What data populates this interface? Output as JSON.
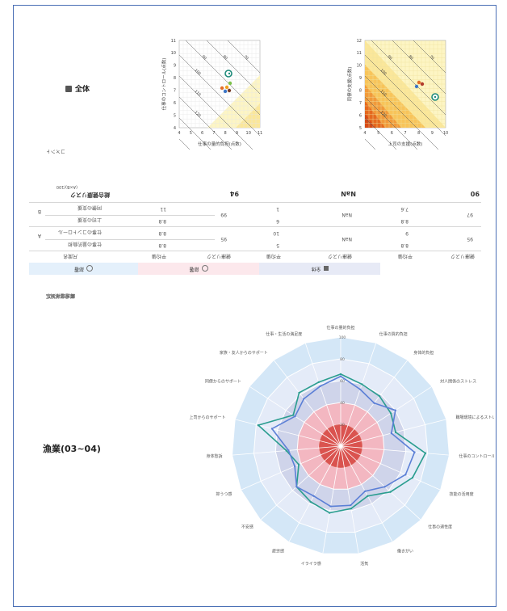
{
  "section_all": {
    "icon": "building-icon",
    "title": "全体"
  },
  "plot1": {
    "xlabel": "仕事の量的負担(点数)",
    "ylabel": "仕事のコントロール(点数)",
    "xticks": [
      "4",
      "5",
      "6",
      "7",
      "8",
      "9",
      "10",
      "11"
    ],
    "yticks": [
      "4",
      "5",
      "6",
      "7",
      "8",
      "9",
      "10",
      "11"
    ],
    "contours": [
      "70",
      "80",
      "90",
      "100",
      "110",
      "120",
      "130",
      "140",
      "150"
    ]
  },
  "plot2": {
    "xlabel": "上司の支援(点数)",
    "ylabel": "同僚の支援(点数)",
    "xticks": [
      "4",
      "5",
      "6",
      "7",
      "8",
      "9",
      "10"
    ],
    "yticks": [
      "5",
      "6",
      "7",
      "8",
      "9",
      "10",
      "11",
      "12"
    ],
    "contours": [
      "70",
      "80",
      "90",
      "100",
      "110",
      "120",
      "130",
      "140"
    ]
  },
  "comment_label": "コメント",
  "table": {
    "tabs": [
      {
        "label": "全体",
        "icon": "building-icon",
        "color": "#e7eaf6"
      },
      {
        "label": "部署",
        "icon": "smile-icon",
        "color": "#fce8ec"
      },
      {
        "label": "部署",
        "icon": "smile-icon",
        "color": "#e4f0fb"
      }
    ],
    "header": [
      "尺度名",
      "平均値",
      "健康リスク",
      "平均値",
      "健康リスク",
      "平均値",
      "健康リスク"
    ],
    "group_a": {
      "label": "A",
      "rows": [
        {
          "name": "仕事の量的負担",
          "v1": "8.8",
          "v2": "5",
          "v3": "8.8"
        },
        {
          "name": "仕事のコントロール",
          "v1": "8.8",
          "v2": "10",
          "v3": "9"
        }
      ],
      "risks": [
        "95",
        "NaN",
        "95"
      ]
    },
    "group_b": {
      "label": "B",
      "rows": [
        {
          "name": "上司の支援",
          "v1": "8.8",
          "v2": "6",
          "v3": "8.8"
        },
        {
          "name": "同僚の支援",
          "v1": "11",
          "v2": "1",
          "v3": "7.6"
        }
      ],
      "risks": [
        "99",
        "NaN",
        "97"
      ]
    },
    "total": {
      "label": "総合健康リスク",
      "formula": "(A×B)/100",
      "values": [
        "94",
        "NaN",
        "90"
      ]
    }
  },
  "radar_section_label": "職場環境測定",
  "radar_title": "漁業(03~04)",
  "chart_data": {
    "type": "radar",
    "title": "",
    "axes": [
      "仕事の量的負担",
      "仕事の質的負担",
      "身体的負担",
      "対人関係のストレス",
      "職場環境によるストレス",
      "仕事のコントロール度",
      "技能の活用度",
      "仕事の適性度",
      "働きがい",
      "活気",
      "イライラ感",
      "疲労感",
      "不安感",
      "抑うつ感",
      "身体愁訴",
      "上司からのサポート",
      "同僚からのサポート",
      "家族・友人からのサポート",
      "仕事・生活の満足度"
    ],
    "range": [
      0,
      100
    ],
    "ticks": [
      "20",
      "40",
      "60",
      "80",
      "100"
    ],
    "bands": [
      "#d9534f",
      "#f3b7c1",
      "#cfd4ea",
      "#e4ebf8",
      "#d4e7f7"
    ],
    "series": [
      {
        "color": "#2a9d8f",
        "values": [
          66,
          60,
          58,
          55,
          52,
          78,
          72,
          62,
          52,
          58,
          62,
          58,
          55,
          42,
          50,
          78,
          52,
          62,
          62
        ]
      },
      {
        "color": "#5b7fd6",
        "values": [
          64,
          55,
          50,
          60,
          48,
          68,
          65,
          55,
          47,
          55,
          56,
          52,
          55,
          46,
          48,
          65,
          50,
          55,
          58
        ]
      }
    ]
  }
}
